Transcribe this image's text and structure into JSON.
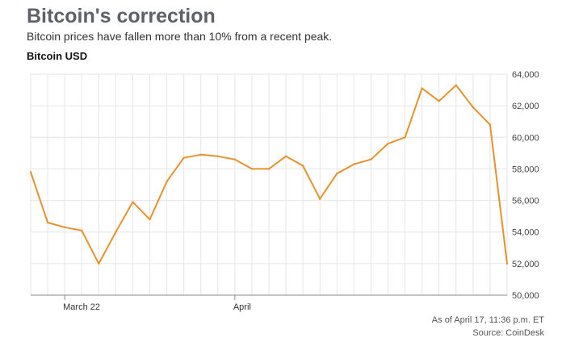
{
  "header": {
    "title": "Bitcoin's correction",
    "subtitle": "Bitcoin prices have fallen more than 10% from a recent peak.",
    "series_title": "Bitcoin USD"
  },
  "footer": {
    "as_of": "As of April 17, 11:36 p.m. ET",
    "source": "Source: CoinDesk"
  },
  "colors": {
    "line": "#e8912d",
    "grid": "#e6e6e6",
    "axis": "#888888"
  },
  "chart_data": {
    "type": "line",
    "title": "Bitcoin USD",
    "x": [
      "Mar 20",
      "Mar 21",
      "Mar 22",
      "Mar 23",
      "Mar 24",
      "Mar 25",
      "Mar 26",
      "Mar 27",
      "Mar 28",
      "Mar 29",
      "Mar 30",
      "Mar 31",
      "Apr 1",
      "Apr 2",
      "Apr 3",
      "Apr 4",
      "Apr 5",
      "Apr 6",
      "Apr 7",
      "Apr 8",
      "Apr 9",
      "Apr 10",
      "Apr 11",
      "Apr 12",
      "Apr 13",
      "Apr 14",
      "Apr 15",
      "Apr 16",
      "Apr 17"
    ],
    "series": [
      {
        "values": [
          57800,
          54600,
          54300,
          54100,
          52000,
          54000,
          55900,
          54800,
          57200,
          58700,
          58900,
          58800,
          58600,
          58000,
          58000,
          58800,
          58200,
          56100,
          57700,
          58300,
          58600,
          59600,
          60000,
          63100,
          62300,
          63300,
          61900,
          60800,
          52000
        ]
      }
    ],
    "yticks": [
      50000,
      52000,
      54000,
      56000,
      58000,
      60000,
      62000,
      64000
    ],
    "ytick_labels": [
      "50,000",
      "52,000",
      "54,000",
      "56,000",
      "58,000",
      "60,000",
      "62,000",
      "64,000"
    ],
    "xtick_labels": [
      {
        "x": "Mar 22",
        "label": "March 22"
      },
      {
        "x": "Apr 1",
        "label": "April"
      }
    ],
    "ylim": [
      50000,
      64000
    ],
    "grid": true
  }
}
